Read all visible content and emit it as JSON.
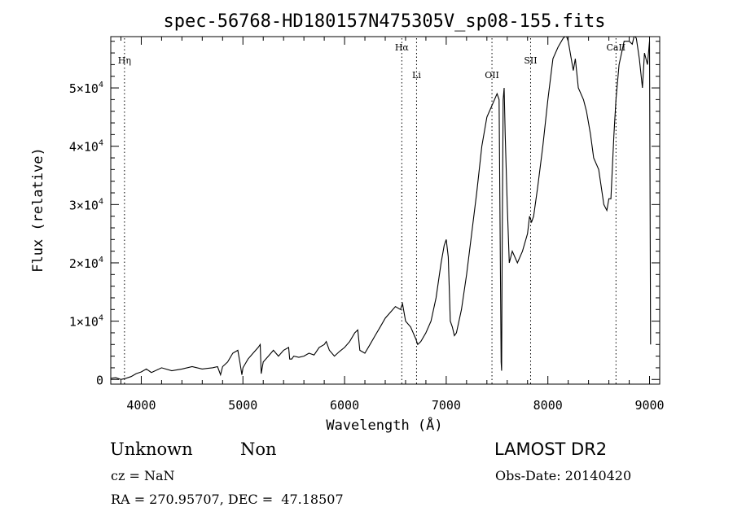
{
  "chart_data": {
    "type": "line",
    "title": "spec-56768-HD180157N475305V_sp08-155.fits",
    "xlabel": "Wavelength (Å)",
    "ylabel": "Flux (relative)",
    "xlim": [
      3700,
      9100
    ],
    "ylim": [
      -800,
      58800
    ],
    "x_ticks": [
      4000,
      5000,
      6000,
      7000,
      8000,
      9000
    ],
    "y_ticks": [
      {
        "value": 0,
        "label": "0",
        "exp": ""
      },
      {
        "value": 10000,
        "label": "1×10",
        "exp": "4"
      },
      {
        "value": 20000,
        "label": "2×10",
        "exp": "4"
      },
      {
        "value": 30000,
        "label": "3×10",
        "exp": "4"
      },
      {
        "value": 40000,
        "label": "4×10",
        "exp": "4"
      },
      {
        "value": 50000,
        "label": "5×10",
        "exp": "4"
      }
    ],
    "grid": false,
    "lines": [
      {
        "label": "Hη",
        "x": 3835
      },
      {
        "label": "Hα",
        "x": 6563
      },
      {
        "label": "Li",
        "x": 6708
      },
      {
        "label": "OII",
        "x": 7450
      },
      {
        "label": "SII",
        "x": 7830
      },
      {
        "label": "CaII",
        "x": 8670
      }
    ],
    "series": [
      {
        "x": [
          3700,
          3750,
          3800,
          3850,
          3900,
          3950,
          4000,
          4050,
          4100,
          4200,
          4300,
          4400,
          4500,
          4600,
          4700,
          4750,
          4780,
          4800,
          4850,
          4900,
          4950,
          4970,
          4990,
          5000,
          5050,
          5100,
          5150,
          5170,
          5180,
          5200,
          5250,
          5300,
          5350,
          5400,
          5450,
          5460,
          5480,
          5500,
          5550,
          5600,
          5650,
          5700,
          5750,
          5800,
          5820,
          5850,
          5900,
          5950,
          6000,
          6050,
          6100,
          6130,
          6150,
          6200,
          6250,
          6300,
          6350,
          6400,
          6450,
          6500,
          6550,
          6570,
          6600,
          6650,
          6700,
          6720,
          6750,
          6800,
          6850,
          6900,
          6950,
          6980,
          7000,
          7020,
          7040,
          7060,
          7080,
          7100,
          7150,
          7200,
          7250,
          7300,
          7350,
          7400,
          7450,
          7500,
          7520,
          7540,
          7545,
          7550,
          7560,
          7570,
          7580,
          7600,
          7620,
          7650,
          7700,
          7750,
          7800,
          7820,
          7840,
          7860,
          7900,
          7950,
          8000,
          8050,
          8100,
          8150,
          8180,
          8200,
          8230,
          8250,
          8270,
          8300,
          8350,
          8380,
          8400,
          8420,
          8450,
          8500,
          8550,
          8580,
          8600,
          8620,
          8650,
          8670,
          8700,
          8750,
          8800,
          8830,
          8850,
          8870,
          8900,
          8930,
          8950,
          8980,
          9000,
          9010
        ],
        "y": [
          200,
          300,
          0,
          200,
          500,
          1000,
          1300,
          1800,
          1200,
          2000,
          1500,
          1800,
          2200,
          1800,
          2000,
          2200,
          800,
          2200,
          3000,
          4500,
          5000,
          3000,
          800,
          2000,
          3500,
          4500,
          5500,
          6000,
          1000,
          3000,
          4000,
          5000,
          4000,
          5000,
          5500,
          3500,
          3500,
          4000,
          3800,
          4000,
          4500,
          4200,
          5500,
          6000,
          6500,
          5000,
          4000,
          4800,
          5500,
          6500,
          8000,
          8500,
          5000,
          4500,
          6000,
          7500,
          9000,
          10500,
          11500,
          12500,
          12000,
          13000,
          10000,
          9000,
          7000,
          6000,
          6500,
          8000,
          10000,
          14000,
          20000,
          23000,
          24000,
          21000,
          10000,
          9000,
          7500,
          8000,
          12000,
          18000,
          25000,
          32000,
          40000,
          45000,
          47000,
          49000,
          48000,
          3000,
          1500,
          20000,
          48000,
          50000,
          42000,
          30000,
          20000,
          22000,
          20000,
          22000,
          25000,
          28000,
          27000,
          28000,
          33000,
          40000,
          48000,
          55000,
          57000,
          58500,
          59000,
          58000,
          55000,
          53000,
          55000,
          50000,
          48000,
          46000,
          44000,
          42000,
          38000,
          36000,
          30000,
          29000,
          31000,
          31000,
          42000,
          48000,
          54000,
          58000,
          58000,
          57500,
          59000,
          58500,
          55000,
          50000,
          56000,
          54000,
          58000,
          6000
        ]
      }
    ]
  },
  "info": {
    "class_label": "Unknown",
    "subclass_label": "Non",
    "cz_text": "cz = NaN",
    "radec_text": "RA = 270.95707, DEC =  47.18507",
    "survey": "LAMOST DR2",
    "obs_date": "Obs-Date: 20140420"
  }
}
